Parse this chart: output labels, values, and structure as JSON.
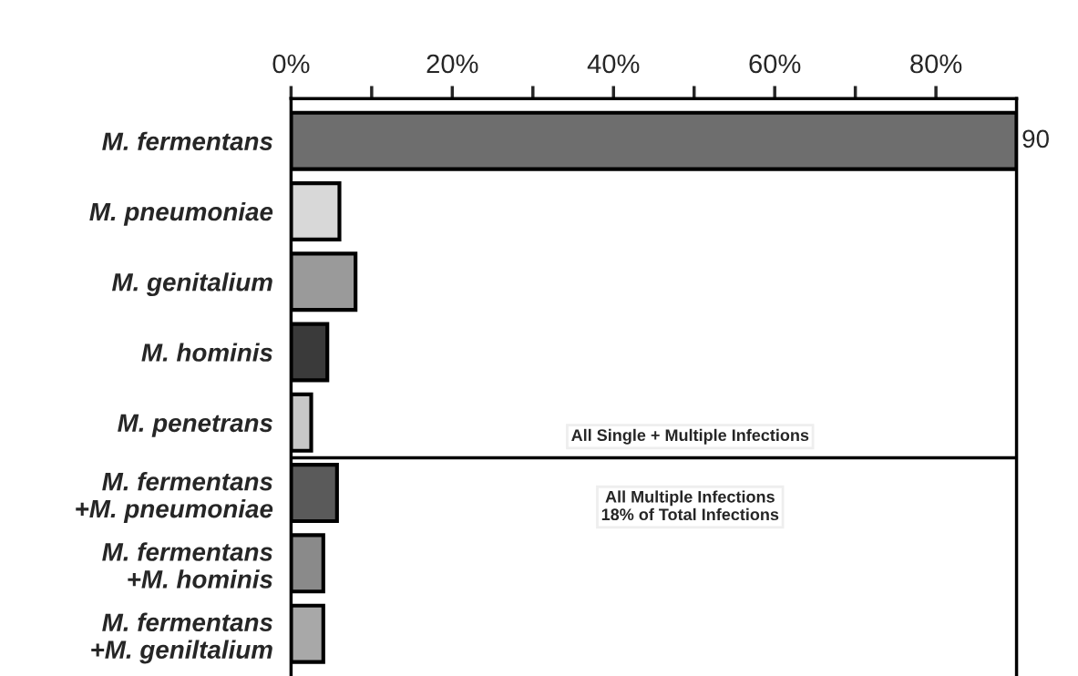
{
  "chart_data": {
    "type": "bar",
    "orientation": "horizontal",
    "categories": [
      "M. fermentans",
      "M. pneumoniae",
      "M. genitalium",
      "M. hominis",
      "M. penetrans",
      "M. fermentans\n+M. pneumoniae",
      "M. fermentans\n+M. hominis",
      "M. fermentans\n+M. geniltalium"
    ],
    "values": [
      90,
      6,
      8,
      4.5,
      2.5,
      5.7,
      4,
      4
    ],
    "value_labels": [
      "90",
      null,
      null,
      null,
      null,
      null,
      null,
      null
    ],
    "colors": [
      "#6e6e6e",
      "#d8d8d8",
      "#9a9a9a",
      "#3a3a3a",
      "#c8c8c8",
      "#5a5a5a",
      "#8a8a8a",
      "#a8a8a8"
    ],
    "xlim": [
      0,
      90
    ],
    "xticks": [
      {
        "value": 0,
        "label": "0%"
      },
      {
        "value": 10,
        "label": null
      },
      {
        "value": 20,
        "label": "20%"
      },
      {
        "value": 30,
        "label": null
      },
      {
        "value": 40,
        "label": "40%"
      },
      {
        "value": 50,
        "label": null
      },
      {
        "value": 60,
        "label": "60%"
      },
      {
        "value": 70,
        "label": null
      },
      {
        "value": 80,
        "label": "80%"
      }
    ],
    "annotations": [
      "All Single + Multiple Infections",
      "All Multiple Infections\n18% of Total Infections"
    ],
    "grid": false,
    "legend": false
  }
}
